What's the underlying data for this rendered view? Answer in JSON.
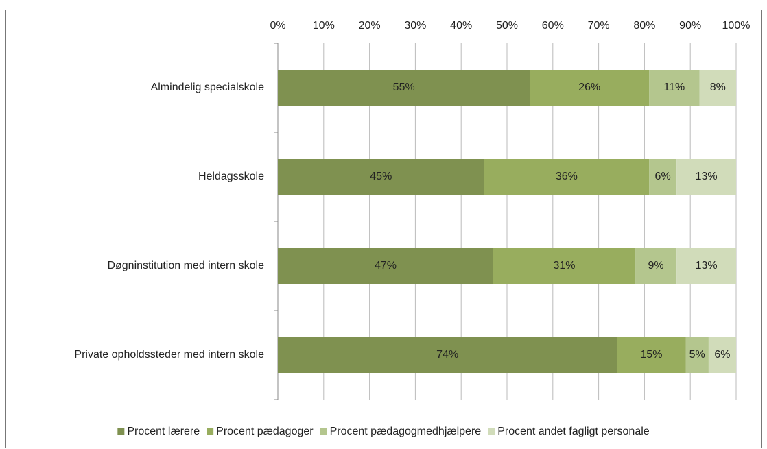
{
  "chart_data": {
    "type": "stacked-bar-horizontal",
    "categories": [
      "Almindelig specialskole",
      "Heldagsskole",
      "Døgninstitution med intern skole",
      "Private opholdssteder med intern skole"
    ],
    "series": [
      {
        "name": "Procent lærere",
        "color": "#7f9150",
        "values": [
          55,
          45,
          47,
          74
        ],
        "value_labels": [
          "55%",
          "45%",
          "47%",
          "74%"
        ]
      },
      {
        "name": "Procent pædagoger",
        "color": "#98ad5e",
        "values": [
          26,
          36,
          31,
          15
        ],
        "value_labels": [
          "26%",
          "36%",
          "31%",
          "15%"
        ]
      },
      {
        "name": "Procent pædagogmedhjælpere",
        "color": "#b4c68e",
        "values": [
          11,
          6,
          9,
          5
        ],
        "value_labels": [
          "11%",
          "6%",
          "9%",
          "5%"
        ]
      },
      {
        "name": "Procent andet fagligt personale",
        "color": "#d1dcba",
        "values": [
          8,
          13,
          13,
          6
        ],
        "value_labels": [
          "8%",
          "13%",
          "13%",
          "6%"
        ]
      }
    ],
    "xlim": [
      0,
      100
    ],
    "xticks": [
      {
        "value": 0,
        "label": "0%"
      },
      {
        "value": 10,
        "label": "10%"
      },
      {
        "value": 20,
        "label": "20%"
      },
      {
        "value": 30,
        "label": "30%"
      },
      {
        "value": 40,
        "label": "40%"
      },
      {
        "value": 50,
        "label": "50%"
      },
      {
        "value": 60,
        "label": "60%"
      },
      {
        "value": 70,
        "label": "70%"
      },
      {
        "value": 80,
        "label": "80%"
      },
      {
        "value": 90,
        "label": "90%"
      },
      {
        "value": 100,
        "label": "100%"
      }
    ],
    "grid": true,
    "legend": "bottom"
  }
}
